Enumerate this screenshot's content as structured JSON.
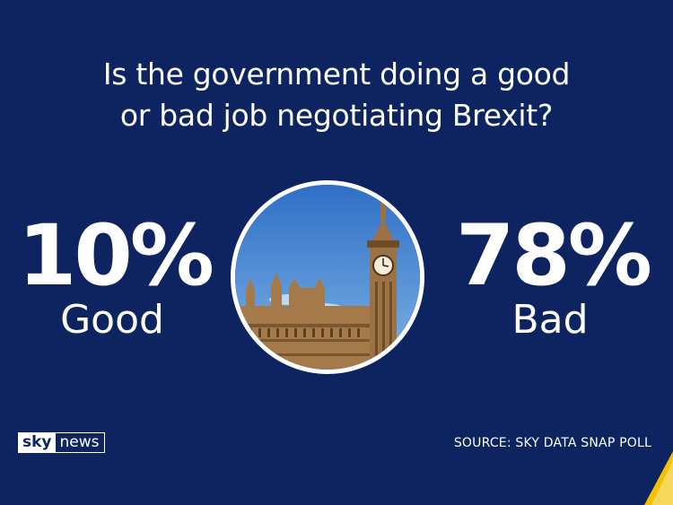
{
  "question": {
    "line1": "Is the government doing a good",
    "line2": "or bad job negotiating Brexit?"
  },
  "stats": {
    "good": {
      "percent": "10%",
      "label": "Good"
    },
    "bad": {
      "percent": "78%",
      "label": "Bad"
    }
  },
  "image": {
    "subject": "Big Ben and Houses of Parliament"
  },
  "logo": {
    "sky": "sky",
    "news": "news"
  },
  "source": "SOURCE: SKY DATA SNAP POLL",
  "colors": {
    "background": "#0d2461",
    "text": "#ffffff",
    "accent": "#f2c200"
  }
}
